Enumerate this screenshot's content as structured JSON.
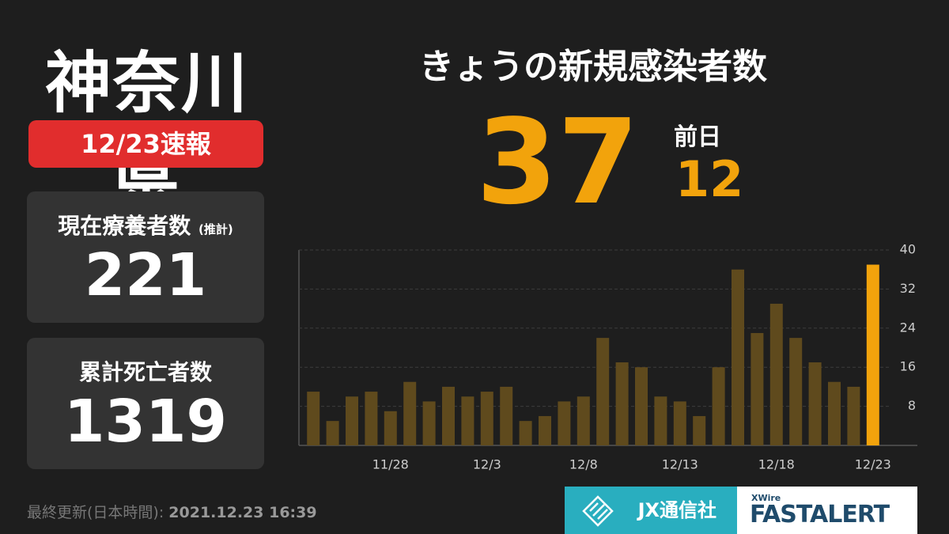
{
  "prefecture": "神奈川県",
  "badge": "12/23速報",
  "cards": [
    {
      "label": "現在療養者数",
      "note": "(推計)",
      "value": 221
    },
    {
      "label": "累計死亡者数",
      "value": 1319
    }
  ],
  "headline": {
    "title": "きょうの新規感染者数",
    "value": 37,
    "prev_label": "前日",
    "prev_value": 12
  },
  "footer": {
    "label": "最終更新(日本時間):",
    "timestamp": "2021.12.23 16:39"
  },
  "logos": {
    "company": "JX通信社",
    "sub": "XWire",
    "product": "FASTALERT"
  },
  "chart_data": {
    "type": "bar",
    "categories": [
      null,
      null,
      null,
      null,
      "11/28",
      null,
      null,
      null,
      null,
      "12/3",
      null,
      null,
      null,
      null,
      "12/8",
      null,
      null,
      null,
      null,
      "12/13",
      null,
      null,
      null,
      null,
      "12/18",
      null,
      null,
      null,
      null,
      "12/23"
    ],
    "values": [
      11,
      5,
      10,
      11,
      7,
      13,
      9,
      12,
      10,
      11,
      12,
      5,
      6,
      9,
      10,
      22,
      17,
      16,
      10,
      9,
      6,
      16,
      36,
      23,
      29,
      22,
      17,
      13,
      12,
      37
    ],
    "colors": [
      "#5f4a1d",
      "#5f4a1d",
      "#5f4a1d",
      "#5f4a1d",
      "#5f4a1d",
      "#5f4a1d",
      "#5f4a1d",
      "#5f4a1d",
      "#5f4a1d",
      "#5f4a1d",
      "#5f4a1d",
      "#5f4a1d",
      "#5f4a1d",
      "#5f4a1d",
      "#5f4a1d",
      "#5f4a1d",
      "#5f4a1d",
      "#5f4a1d",
      "#5f4a1d",
      "#5f4a1d",
      "#5f4a1d",
      "#5f4a1d",
      "#5f4a1d",
      "#5f4a1d",
      "#5f4a1d",
      "#5f4a1d",
      "#5f4a1d",
      "#5f4a1d",
      "#5f4a1d",
      "#f2a30c"
    ],
    "ylim": [
      0,
      40
    ],
    "yticks": [
      8,
      16,
      24,
      32,
      40
    ],
    "grid": true
  }
}
